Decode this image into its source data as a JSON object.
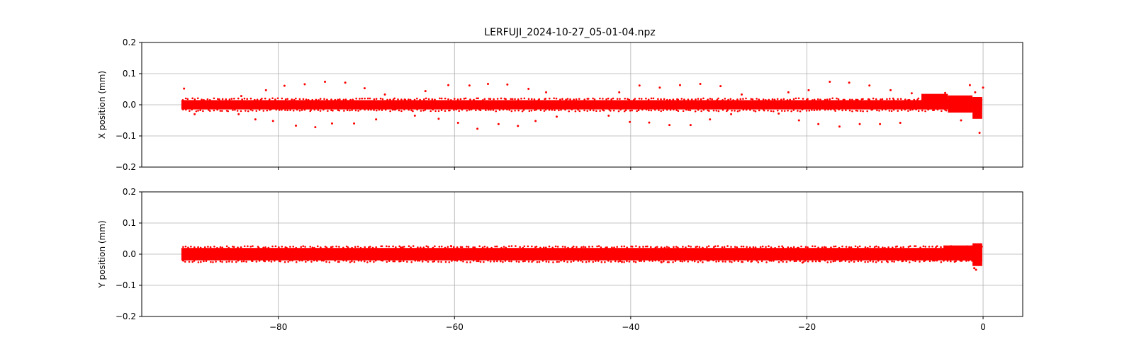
{
  "chart_data": [
    {
      "type": "scatter",
      "title": "LERFUJI_2024-10-27_05-01-04.npz",
      "xlabel": "",
      "ylabel": "X position (mm)",
      "xlim": [
        -95.5,
        4.5
      ],
      "ylim": [
        -0.2,
        0.2
      ],
      "xticks": [
        -80,
        -60,
        -40,
        -20,
        0
      ],
      "xtick_labels": [
        "",
        "",
        "",
        "",
        ""
      ],
      "yticks": [
        -0.2,
        -0.1,
        0.0,
        0.1,
        0.2
      ],
      "ytick_labels": [
        "−0.2",
        "−0.1",
        "0.0",
        "0.1",
        "0.2"
      ],
      "grid": true,
      "color": "#ff0000",
      "series": [
        {
          "band": {
            "x": [
              -91,
              -0.1
            ],
            "y": [
              -0.015,
              0.015
            ]
          },
          "band_segments": [
            {
              "x": [
                -7,
                -4
              ],
              "y": [
                -0.015,
                0.035
              ]
            },
            {
              "x": [
                -4,
                -1.2
              ],
              "y": [
                -0.025,
                0.03
              ]
            },
            {
              "x": [
                -1.2,
                -0.1
              ],
              "y": [
                -0.045,
                0.025
              ]
            }
          ],
          "outliers": [
            [
              -90.7,
              0.052
            ],
            [
              -89.5,
              -0.03
            ],
            [
              -84.2,
              0.028
            ],
            [
              -84.5,
              -0.03
            ],
            [
              -82.6,
              -0.047
            ],
            [
              -81.4,
              0.047
            ],
            [
              -80.6,
              -0.052
            ],
            [
              -79.3,
              0.061
            ],
            [
              -78.0,
              -0.067
            ],
            [
              -77.0,
              0.066
            ],
            [
              -75.8,
              -0.072
            ],
            [
              -74.7,
              0.074
            ],
            [
              -73.9,
              -0.06
            ],
            [
              -72.4,
              0.071
            ],
            [
              -71.4,
              -0.06
            ],
            [
              -70.2,
              0.053
            ],
            [
              -68.9,
              -0.047
            ],
            [
              -67.9,
              0.033
            ],
            [
              -66.7,
              -0.015
            ],
            [
              -65.6,
              0.016
            ],
            [
              -64.5,
              -0.035
            ],
            [
              -63.3,
              0.044
            ],
            [
              -61.8,
              -0.045
            ],
            [
              -60.7,
              0.063
            ],
            [
              -59.6,
              -0.058
            ],
            [
              -58.3,
              0.062
            ],
            [
              -57.4,
              -0.077
            ],
            [
              -56.2,
              0.067
            ],
            [
              -55.0,
              -0.062
            ],
            [
              -54.0,
              0.065
            ],
            [
              -52.8,
              -0.068
            ],
            [
              -51.6,
              0.051
            ],
            [
              -50.8,
              -0.052
            ],
            [
              -49.6,
              0.04
            ],
            [
              -48.4,
              -0.038
            ],
            [
              -42.5,
              -0.035
            ],
            [
              -41.3,
              0.04
            ],
            [
              -40.1,
              -0.055
            ],
            [
              -39.0,
              0.062
            ],
            [
              -37.9,
              -0.057
            ],
            [
              -36.7,
              0.055
            ],
            [
              -35.6,
              -0.065
            ],
            [
              -34.4,
              0.063
            ],
            [
              -33.2,
              -0.065
            ],
            [
              -32.1,
              0.067
            ],
            [
              -31.0,
              -0.047
            ],
            [
              -29.8,
              0.06
            ],
            [
              -28.6,
              -0.03
            ],
            [
              -27.4,
              0.033
            ],
            [
              -23.2,
              -0.028
            ],
            [
              -22.1,
              0.04
            ],
            [
              -20.9,
              -0.05
            ],
            [
              -19.8,
              0.047
            ],
            [
              -18.7,
              -0.062
            ],
            [
              -17.4,
              0.074
            ],
            [
              -16.3,
              -0.07
            ],
            [
              -15.2,
              0.071
            ],
            [
              -14.0,
              -0.062
            ],
            [
              -12.9,
              0.062
            ],
            [
              -11.7,
              -0.062
            ],
            [
              -10.5,
              0.047
            ],
            [
              -9.4,
              -0.058
            ],
            [
              -8.1,
              0.037
            ],
            [
              -4.3,
              0.038
            ],
            [
              -2.5,
              -0.05
            ],
            [
              -1.5,
              0.063
            ],
            [
              -0.9,
              0.04
            ],
            [
              -0.4,
              -0.09
            ],
            [
              0.0,
              0.055
            ]
          ]
        }
      ]
    },
    {
      "type": "scatter",
      "title": "",
      "xlabel": "",
      "ylabel": "Y position (mm)",
      "xlim": [
        -95.5,
        4.5
      ],
      "ylim": [
        -0.2,
        0.2
      ],
      "xticks": [
        -80,
        -60,
        -40,
        -20,
        0
      ],
      "xtick_labels": [
        "−80",
        "−60",
        "−40",
        "−20",
        "0"
      ],
      "yticks": [
        -0.2,
        -0.1,
        0.0,
        0.1,
        0.2
      ],
      "ytick_labels": [
        "−0.2",
        "−0.1",
        "0.0",
        "0.1",
        "0.2"
      ],
      "grid": true,
      "color": "#ff0000",
      "series": [
        {
          "band": {
            "x": [
              -91,
              -0.1
            ],
            "y": [
              -0.02,
              0.02
            ]
          },
          "band_segments": [
            {
              "x": [
                -4.5,
                -0.1
              ],
              "y": [
                -0.02,
                0.028
              ]
            },
            {
              "x": [
                -1.2,
                -0.1
              ],
              "y": [
                -0.038,
                0.035
              ]
            }
          ],
          "outliers": [
            [
              -90.8,
              -0.02
            ],
            [
              -65.9,
              0.022
            ],
            [
              -60.4,
              0.026
            ],
            [
              -41.0,
              -0.025
            ],
            [
              -36.5,
              -0.026
            ],
            [
              -20.5,
              -0.027
            ],
            [
              -1.0,
              -0.045
            ],
            [
              -0.8,
              -0.05
            ]
          ]
        }
      ]
    }
  ]
}
